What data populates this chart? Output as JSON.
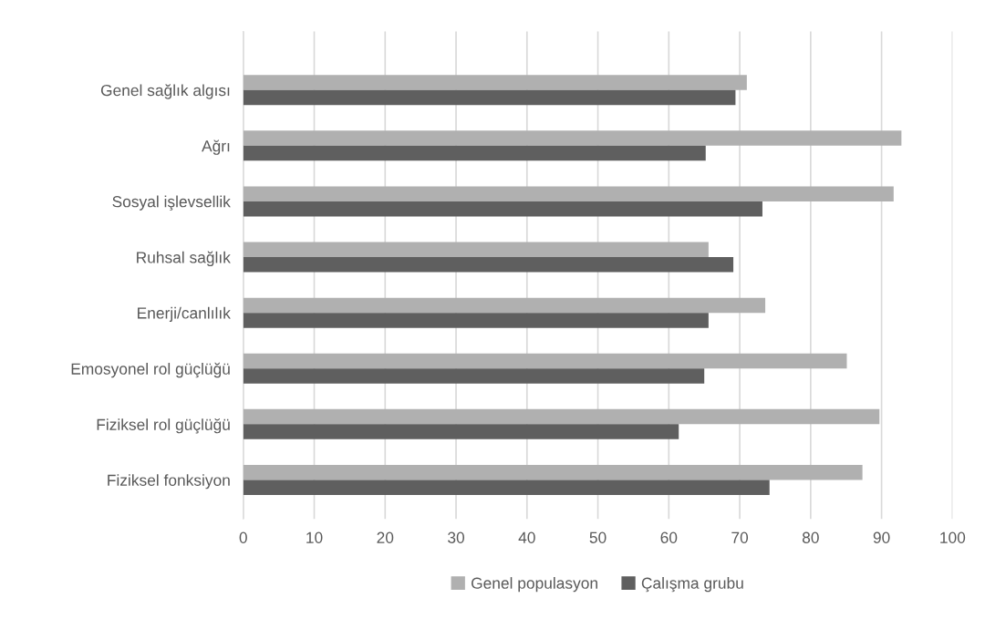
{
  "chart_data": {
    "type": "bar",
    "orientation": "horizontal",
    "categories": [
      "Genel sağlık algısı",
      "Ağrı",
      "Sosyal işlevsellik",
      "Ruhsal sağlık",
      "Enerji/canlılık",
      "Emosyonel rol güçlüğü",
      "Fiziksel rol güçlüğü",
      "Fiziksel fonksiyon"
    ],
    "series": [
      {
        "name": "Genel populasyon",
        "color": "#b0b0b0",
        "values": [
          71.0,
          92.8,
          91.7,
          65.6,
          73.6,
          85.1,
          89.7,
          87.3
        ]
      },
      {
        "name": "Çalışma grubu",
        "color": "#5f5f5f",
        "values": [
          69.4,
          65.2,
          73.2,
          69.1,
          65.6,
          65.0,
          61.4,
          74.2
        ]
      }
    ],
    "xlim": [
      0,
      100
    ],
    "xticks": [
      0,
      10,
      20,
      30,
      40,
      50,
      60,
      70,
      80,
      90,
      100
    ],
    "grid": "x",
    "legend": "bottom"
  }
}
